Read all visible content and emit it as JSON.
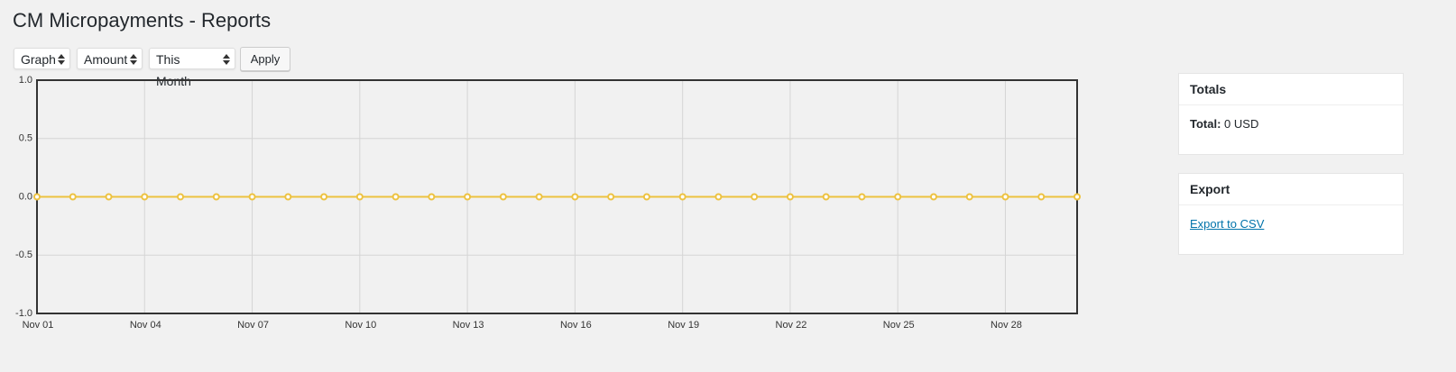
{
  "page": {
    "title": "CM Micropayments - Reports"
  },
  "controls": {
    "view": "Graph",
    "metric": "Amount",
    "range": "This Month",
    "apply": "Apply"
  },
  "chart_data": {
    "type": "line",
    "categories": [
      "Nov 01",
      null,
      null,
      "Nov 04",
      null,
      null,
      "Nov 07",
      null,
      null,
      "Nov 10",
      null,
      null,
      "Nov 13",
      null,
      null,
      "Nov 16",
      null,
      null,
      "Nov 19",
      null,
      null,
      "Nov 22",
      null,
      null,
      "Nov 25",
      null,
      null,
      "Nov 28",
      null,
      null
    ],
    "values": [
      0,
      0,
      0,
      0,
      0,
      0,
      0,
      0,
      0,
      0,
      0,
      0,
      0,
      0,
      0,
      0,
      0,
      0,
      0,
      0,
      0,
      0,
      0,
      0,
      0,
      0,
      0,
      0,
      0,
      0
    ],
    "color": "#edc240",
    "ylim": [
      -1,
      1
    ],
    "yticks": [
      {
        "value": -1,
        "label": "-1.0"
      },
      {
        "value": -0.5,
        "label": "-0.5"
      },
      {
        "value": 0,
        "label": "0.0"
      },
      {
        "value": 0.5,
        "label": "0.5"
      },
      {
        "value": 1,
        "label": "1.0"
      }
    ],
    "grid": true
  },
  "totals": {
    "heading": "Totals",
    "label": "Total:",
    "value": "0 USD"
  },
  "export": {
    "heading": "Export",
    "link": "Export to CSV"
  }
}
